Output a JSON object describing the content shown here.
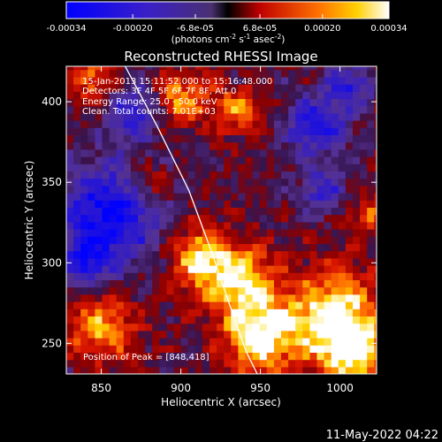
{
  "chart_data": {
    "type": "heatmap",
    "title": "Reconstructed RHESSI Image",
    "xlabel": "Heliocentric X (arcsec)",
    "ylabel": "Heliocentric Y (arcsec)",
    "xlim": [
      828,
      1023
    ],
    "ylim": [
      231,
      422
    ],
    "x_ticks": [
      850,
      900,
      950,
      1000
    ],
    "y_ticks": [
      250,
      300,
      350,
      400
    ],
    "colorbar": {
      "range": [
        -0.00034,
        0.00034
      ],
      "tick_values": [
        -0.00034,
        -0.0002,
        -6.8e-05,
        6.8e-05,
        0.0002,
        0.00034
      ],
      "tick_labels": [
        "-0.00034",
        "-0.00020",
        "-6.8e-05",
        "6.8e-05",
        "0.00020",
        "0.00034"
      ],
      "unit_prefix": "(photons cm",
      "unit_sup1": "-2",
      "unit_mid": " s",
      "unit_sup2": "-1",
      "unit_mid2": " asec",
      "unit_sup3": "-2",
      "unit_suffix": ")"
    },
    "info_lines": [
      "15-Jan-2013 15:11:52.000 to 15:16:48.000",
      "Detectors: 3F 4F 5F 6F 7F 8F, Att 0",
      "Energy Range: 25.0 - 50.0 keV",
      "Clean.   Total counts: 7.01E+03"
    ],
    "peak_text": "Position of Peak = [848,418]",
    "limb_curve": {
      "x": [
        865,
        885,
        905,
        920,
        932,
        941,
        948
      ],
      "y": [
        422,
        385,
        345,
        305,
        270,
        245,
        231
      ]
    },
    "bright_regions": [
      {
        "x": 950,
        "y": 255,
        "sigma": 16,
        "peak": 1.0
      },
      {
        "x": 995,
        "y": 268,
        "sigma": 20,
        "peak": 0.95
      },
      {
        "x": 935,
        "y": 290,
        "sigma": 16,
        "peak": 0.9
      },
      {
        "x": 1010,
        "y": 245,
        "sigma": 15,
        "peak": 0.85
      },
      {
        "x": 910,
        "y": 305,
        "sigma": 13,
        "peak": 0.75
      },
      {
        "x": 900,
        "y": 402,
        "sigma": 12,
        "peak": 0.7
      },
      {
        "x": 935,
        "y": 395,
        "sigma": 11,
        "peak": 0.6
      },
      {
        "x": 845,
        "y": 415,
        "sigma": 10,
        "peak": 0.65
      },
      {
        "x": 850,
        "y": 260,
        "sigma": 15,
        "peak": 0.7
      },
      {
        "x": 880,
        "y": 350,
        "sigma": 9,
        "peak": 0.45
      },
      {
        "x": 1018,
        "y": 330,
        "sigma": 10,
        "peak": 0.5
      }
    ],
    "dark_regions": [
      {
        "x": 855,
        "y": 330,
        "sigma": 22,
        "peak": -1.0
      },
      {
        "x": 870,
        "y": 395,
        "sigma": 12,
        "peak": -0.7
      },
      {
        "x": 985,
        "y": 385,
        "sigma": 13,
        "peak": -0.8
      },
      {
        "x": 990,
        "y": 345,
        "sigma": 10,
        "peak": -0.6
      },
      {
        "x": 1005,
        "y": 410,
        "sigma": 10,
        "peak": -0.7
      },
      {
        "x": 840,
        "y": 300,
        "sigma": 10,
        "peak": -0.6
      }
    ]
  },
  "footer": {
    "date": "11-May-2022 04:22"
  }
}
